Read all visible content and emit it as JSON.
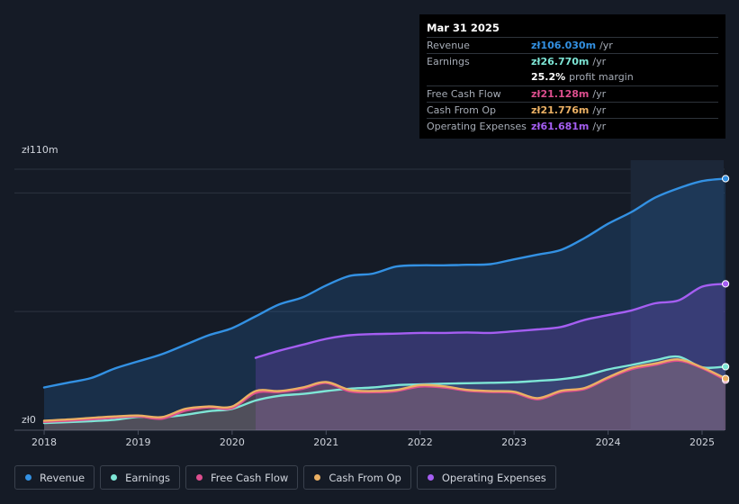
{
  "chart_data": {
    "type": "area",
    "x": [
      2018.0,
      2018.25,
      2018.5,
      2018.75,
      2019.0,
      2019.25,
      2019.5,
      2019.75,
      2020.0,
      2020.25,
      2020.5,
      2020.75,
      2021.0,
      2021.25,
      2021.5,
      2021.75,
      2022.0,
      2022.25,
      2022.5,
      2022.75,
      2023.0,
      2023.25,
      2023.5,
      2023.75,
      2024.0,
      2024.25,
      2024.5,
      2024.75,
      2025.0,
      2025.25
    ],
    "series": [
      {
        "name": "Revenue",
        "color": "#3391e3",
        "values": [
          18,
          20,
          22,
          26,
          29,
          32,
          36,
          40,
          43,
          48,
          53,
          56,
          61,
          65,
          66,
          69,
          69.5,
          69.5,
          69.7,
          70,
          72,
          74,
          76,
          81,
          87,
          92,
          98,
          102,
          105,
          106.03
        ]
      },
      {
        "name": "Earnings",
        "color": "#7ee6d6",
        "values": [
          3,
          3.4,
          3.8,
          4.4,
          5.6,
          5.4,
          6.5,
          8,
          9,
          12.5,
          14.5,
          15.3,
          16.5,
          17.5,
          18,
          19,
          19.3,
          19.6,
          19.8,
          20,
          20.2,
          20.8,
          21.5,
          23,
          25.6,
          27.5,
          29.5,
          31,
          26.5,
          26.77
        ]
      },
      {
        "name": "Free Cash Flow",
        "color": "#dd4e8e",
        "values": [
          3.5,
          4,
          4.6,
          5.3,
          5.8,
          4.8,
          8.2,
          9.6,
          9.3,
          15.7,
          16.1,
          17.5,
          19.9,
          16.4,
          16,
          16.5,
          18.4,
          18,
          16.6,
          16.1,
          15.7,
          13,
          16.1,
          17.3,
          21.8,
          25.7,
          27.5,
          29.3,
          26.1,
          21.13
        ]
      },
      {
        "name": "Cash From Op",
        "color": "#ebb064",
        "values": [
          4,
          4.5,
          5.2,
          5.8,
          6.2,
          5.5,
          9,
          10,
          10,
          16.5,
          16.5,
          18,
          20.3,
          17,
          16.5,
          17,
          19,
          18.5,
          17,
          16.5,
          16.2,
          13.5,
          16.6,
          17.8,
          22.3,
          26.3,
          28.1,
          29.8,
          26.5,
          21.78
        ]
      },
      {
        "name": "Operating Expenses",
        "color": "#a55ef2",
        "values": [
          null,
          null,
          null,
          null,
          null,
          null,
          null,
          null,
          null,
          30.5,
          33.5,
          36,
          38.5,
          40,
          40.5,
          40.7,
          41,
          41,
          41.2,
          41,
          41.7,
          42.5,
          43.5,
          46.5,
          48.5,
          50.5,
          53.5,
          54.7,
          60.5,
          61.68
        ]
      }
    ],
    "x_ticks": [
      "2018",
      "2019",
      "2020",
      "2021",
      "2022",
      "2023",
      "2024",
      "2025"
    ],
    "y_labels": {
      "top": "zł110m",
      "bottom": "zł0"
    },
    "ylim": [
      0,
      110
    ],
    "xlim": [
      2017.99,
      2025.23
    ],
    "highlight_from": 2024.24
  },
  "tooltip": {
    "date": "Mar 31 2025",
    "rows": [
      {
        "label": "Revenue",
        "value": "zł106.030m",
        "unit": "/yr",
        "color": "#3391e3"
      },
      {
        "label": "Earnings",
        "value": "zł26.770m",
        "unit": "/yr",
        "color": "#7ee6d6"
      },
      {
        "label": "",
        "value": "25.2%",
        "unit": "profit margin",
        "color": "#ffffff"
      },
      {
        "label": "Free Cash Flow",
        "value": "zł21.128m",
        "unit": "/yr",
        "color": "#dd4e8e"
      },
      {
        "label": "Cash From Op",
        "value": "zł21.776m",
        "unit": "/yr",
        "color": "#ebb064"
      },
      {
        "label": "Operating Expenses",
        "value": "zł61.681m",
        "unit": "/yr",
        "color": "#a55ef2"
      }
    ]
  },
  "legend": [
    {
      "label": "Revenue",
      "color": "#3391e3"
    },
    {
      "label": "Earnings",
      "color": "#7ee6d6"
    },
    {
      "label": "Free Cash Flow",
      "color": "#dd4e8e"
    },
    {
      "label": "Cash From Op",
      "color": "#ebb064"
    },
    {
      "label": "Operating Expenses",
      "color": "#a55ef2"
    }
  ]
}
